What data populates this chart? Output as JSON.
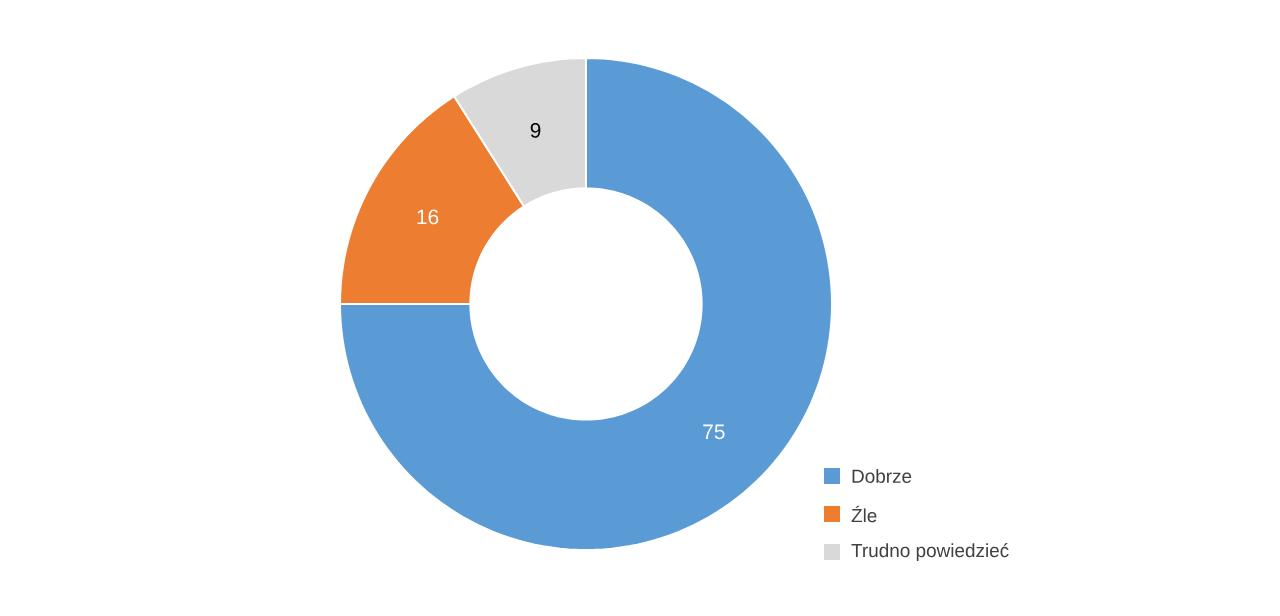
{
  "chart_data": {
    "type": "donut",
    "categories": [
      "Dobrze",
      "Źle",
      "Trudno powiedzieć"
    ],
    "values": [
      75,
      16,
      9
    ],
    "colors": [
      "#5b9bd5",
      "#ed7d31",
      "#d9d9d9"
    ],
    "data_labels": true,
    "legend": "bottom right"
  }
}
